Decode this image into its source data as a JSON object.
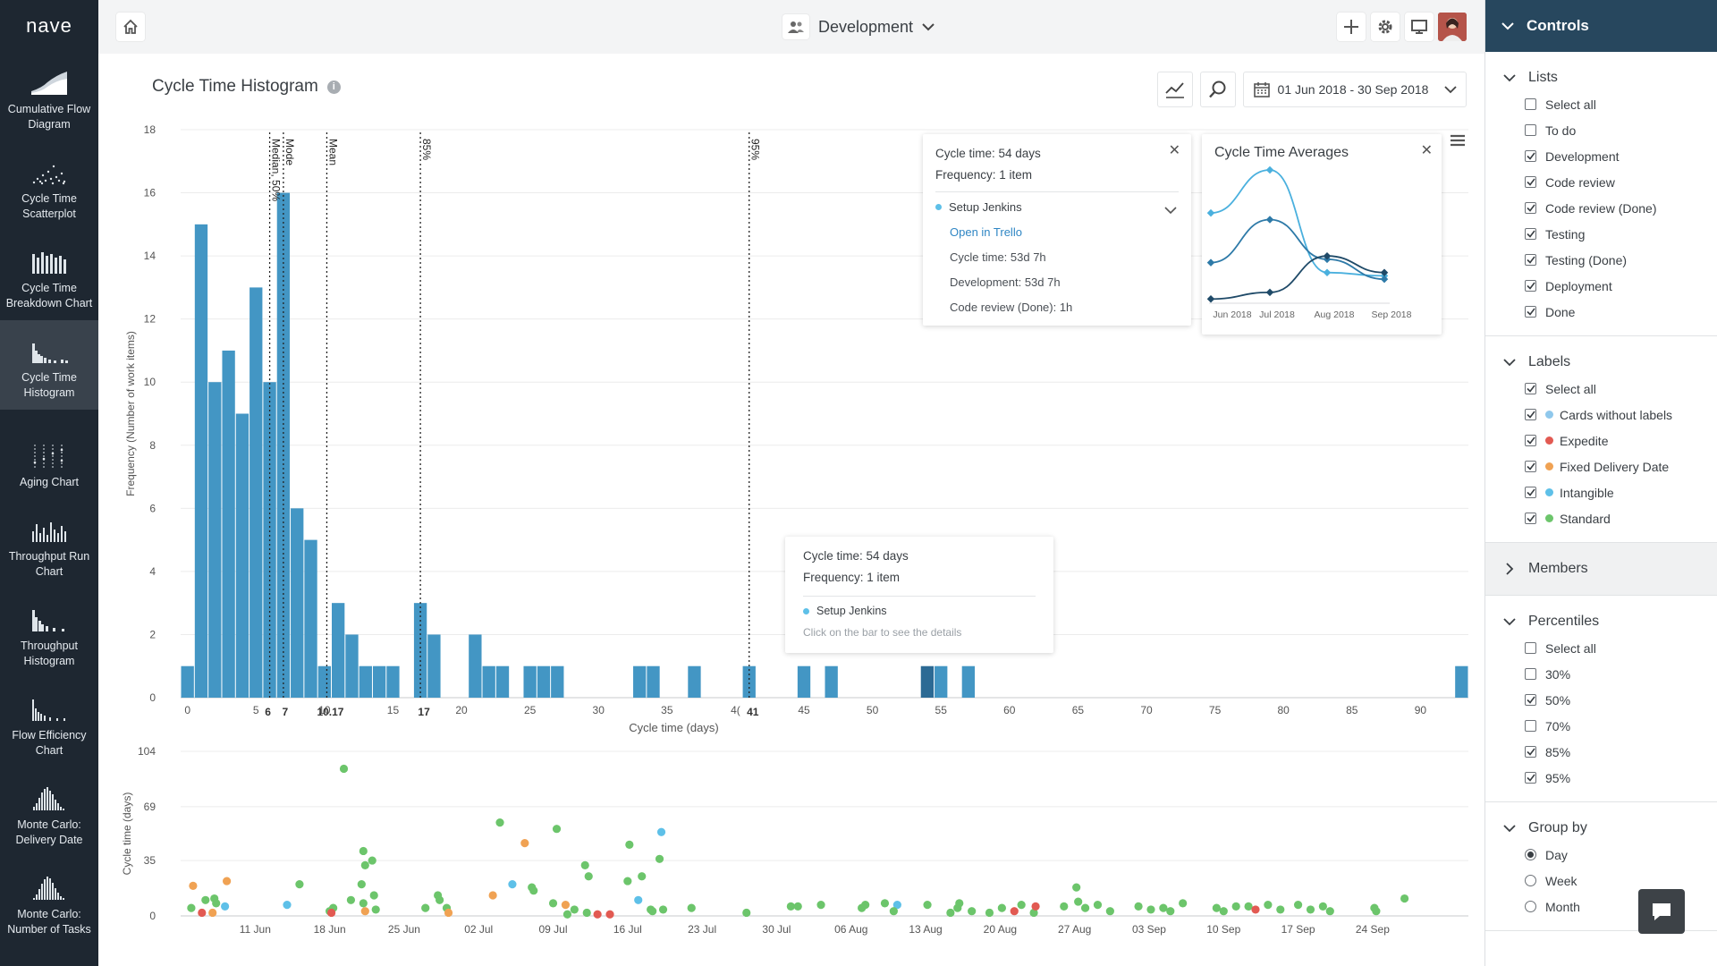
{
  "app": {
    "logo": "nave"
  },
  "nav": {
    "items": [
      {
        "label": "Cumulative Flow Diagram",
        "icon": "cfd-icon"
      },
      {
        "label": "Cycle Time Scatterplot",
        "icon": "scatterplot-icon"
      },
      {
        "label": "Cycle Time Breakdown Chart",
        "icon": "breakdown-icon"
      },
      {
        "label": "Cycle Time Histogram",
        "icon": "histogram-icon",
        "active": true
      },
      {
        "label": "Aging Chart",
        "icon": "aging-icon"
      },
      {
        "label": "Throughput Run Chart",
        "icon": "throughput-run-icon"
      },
      {
        "label": "Throughput Histogram",
        "icon": "throughput-histogram-icon"
      },
      {
        "label": "Flow Efficiency Chart",
        "icon": "flow-efficiency-icon"
      },
      {
        "label": "Monte Carlo: Delivery Date",
        "icon": "monte-carlo-date-icon"
      },
      {
        "label": "Monte Carlo: Number of Tasks",
        "icon": "monte-carlo-tasks-icon"
      }
    ]
  },
  "topbar": {
    "board": "Development"
  },
  "main": {
    "title": "Cycle Time Histogram",
    "info_glyph": "i",
    "date_range": "01 Jun 2018 - 30 Sep 2018"
  },
  "colors": {
    "bar": "#4396c4",
    "bar_selected": "#2c6a94",
    "accent": "#27475e",
    "standard": "#6cc56b",
    "expedite": "#e25a52",
    "fixed": "#f0a253",
    "intangible": "#5ec0e8"
  },
  "details_popup": {
    "cycle_time": "Cycle time: 54 days",
    "frequency": "Frequency: 1 item",
    "card": "Setup Jenkins",
    "link": "Open in Trello",
    "lines": [
      "Cycle time: 53d 7h",
      "Development: 53d 7h",
      "Code review (Done): 1h"
    ]
  },
  "averages_popup": {
    "title": "Cycle Time Averages",
    "x_labels": [
      "Jun 2018",
      "Jul 2018",
      "Aug 2018",
      "Sep 2018"
    ],
    "series": [
      {
        "values": [
          15,
          16.3,
          13.2,
          13.1
        ]
      },
      {
        "values": [
          13.5,
          14.8,
          13.6,
          13.0
        ]
      },
      {
        "values": [
          12.4,
          12.6,
          13.7,
          13.2
        ]
      }
    ]
  },
  "hover_tip": {
    "cycle_time": "Cycle time: 54 days",
    "frequency": "Frequency: 1 item",
    "card": "Setup Jenkins",
    "hint": "Click on the bar to see the details"
  },
  "chart_data": [
    {
      "type": "bar",
      "title": "Cycle Time Histogram",
      "xlabel": "Cycle time (days)",
      "ylabel": "Frequency (Number of work items)",
      "ylim": [
        0,
        18
      ],
      "xlim": [
        -0.5,
        93.5
      ],
      "y_ticks": [
        0,
        2,
        4,
        6,
        8,
        10,
        12,
        14,
        16,
        18
      ],
      "x_ticks": [
        0,
        5,
        10,
        15,
        20,
        25,
        30,
        35,
        40,
        45,
        50,
        55,
        60,
        65,
        70,
        75,
        80,
        85,
        90
      ],
      "x_tick_last_text": "4(",
      "bars": [
        [
          0,
          1
        ],
        [
          1,
          15
        ],
        [
          2,
          10
        ],
        [
          3,
          11
        ],
        [
          4,
          9
        ],
        [
          5,
          13
        ],
        [
          6,
          10
        ],
        [
          7,
          16
        ],
        [
          8,
          6
        ],
        [
          9,
          5
        ],
        [
          10,
          1
        ],
        [
          11,
          3
        ],
        [
          12,
          2
        ],
        [
          13,
          1
        ],
        [
          14,
          1
        ],
        [
          15,
          1
        ],
        [
          17,
          3
        ],
        [
          18,
          2
        ],
        [
          21,
          2
        ],
        [
          22,
          1
        ],
        [
          23,
          1
        ],
        [
          25,
          1
        ],
        [
          26,
          1
        ],
        [
          27,
          1
        ],
        [
          33,
          1
        ],
        [
          34,
          1
        ],
        [
          37,
          1
        ],
        [
          41,
          1
        ],
        [
          45,
          1
        ],
        [
          47,
          1
        ],
        [
          54,
          1
        ],
        [
          55,
          1
        ],
        [
          57,
          1
        ],
        [
          93,
          1
        ]
      ],
      "selected_bars": [
        54
      ],
      "markers": [
        {
          "x": 6,
          "label": "Median, 50%",
          "tick": "6"
        },
        {
          "x": 7,
          "label": "Mode",
          "tick": "7"
        },
        {
          "x": 10.17,
          "label": "Mean",
          "tick": "10.17"
        },
        {
          "x": 17,
          "label": "85%",
          "tick": "17"
        },
        {
          "x": 41,
          "label": "95%",
          "tick": "41"
        }
      ]
    },
    {
      "type": "scatter",
      "ylabel": "Cycle time (days)",
      "y_ticks": [
        0,
        35,
        69,
        104
      ],
      "ylim": [
        0,
        104
      ],
      "x_ticks": [
        "11 Jun",
        "18 Jun",
        "25 Jun",
        "02 Jul",
        "09 Jul",
        "16 Jul",
        "23 Jul",
        "30 Jul",
        "06 Aug",
        "13 Aug",
        "20 Aug",
        "27 Aug",
        "03 Sep",
        "10 Sep",
        "17 Sep",
        "24 Sep"
      ],
      "x_range_days": [
        0,
        121
      ],
      "points": [
        [
          1,
          5,
          "s"
        ],
        [
          1,
          19,
          "f"
        ],
        [
          2,
          10,
          "s"
        ],
        [
          2,
          2,
          "e"
        ],
        [
          3,
          11,
          "s"
        ],
        [
          3,
          8,
          "s"
        ],
        [
          3,
          2,
          "f"
        ],
        [
          4,
          6,
          "i"
        ],
        [
          4,
          22,
          "f"
        ],
        [
          10,
          7,
          "i"
        ],
        [
          11,
          20,
          "s"
        ],
        [
          14,
          5,
          "s"
        ],
        [
          14,
          3,
          "s"
        ],
        [
          14,
          2,
          "e"
        ],
        [
          15,
          93,
          "s"
        ],
        [
          16,
          10,
          "s"
        ],
        [
          17,
          41,
          "s"
        ],
        [
          17,
          32,
          "s"
        ],
        [
          17,
          20,
          "s"
        ],
        [
          17,
          8,
          "s"
        ],
        [
          17,
          3,
          "f"
        ],
        [
          18,
          35,
          "s"
        ],
        [
          18,
          13,
          "s"
        ],
        [
          18,
          4,
          "s"
        ],
        [
          23,
          5,
          "s"
        ],
        [
          24,
          13,
          "s"
        ],
        [
          24,
          10,
          "s"
        ],
        [
          25,
          5,
          "s"
        ],
        [
          25,
          2,
          "f"
        ],
        [
          29,
          13,
          "f"
        ],
        [
          30,
          59,
          "s"
        ],
        [
          31,
          20,
          "i"
        ],
        [
          32,
          46,
          "f"
        ],
        [
          33,
          18,
          "s"
        ],
        [
          33,
          16,
          "s"
        ],
        [
          35,
          55,
          "s"
        ],
        [
          35,
          8,
          "s"
        ],
        [
          36,
          7,
          "f"
        ],
        [
          36,
          1,
          "s"
        ],
        [
          37,
          4,
          "s"
        ],
        [
          38,
          2,
          "s"
        ],
        [
          38,
          25,
          "s"
        ],
        [
          38,
          32,
          "s"
        ],
        [
          39,
          1,
          "e"
        ],
        [
          40,
          1,
          "e"
        ],
        [
          42,
          22,
          "s"
        ],
        [
          42,
          45,
          "s"
        ],
        [
          43,
          25,
          "s"
        ],
        [
          43,
          10,
          "i"
        ],
        [
          44,
          4,
          "s"
        ],
        [
          44,
          3,
          "s"
        ],
        [
          45,
          36,
          "s"
        ],
        [
          45,
          53,
          "i"
        ],
        [
          45,
          4,
          "s"
        ],
        [
          48,
          5,
          "s"
        ],
        [
          53,
          2,
          "s"
        ],
        [
          57,
          6,
          "s"
        ],
        [
          58,
          6,
          "s"
        ],
        [
          60,
          7,
          "s"
        ],
        [
          64,
          7,
          "s"
        ],
        [
          64,
          5,
          "s"
        ],
        [
          66,
          8,
          "s"
        ],
        [
          67,
          7,
          "i"
        ],
        [
          67,
          3,
          "s"
        ],
        [
          70,
          7,
          "s"
        ],
        [
          72,
          2,
          "s"
        ],
        [
          73,
          5,
          "s"
        ],
        [
          73,
          8,
          "s"
        ],
        [
          74,
          3,
          "s"
        ],
        [
          76,
          2,
          "s"
        ],
        [
          77,
          5,
          "s"
        ],
        [
          78,
          3,
          "e"
        ],
        [
          79,
          7,
          "s"
        ],
        [
          80,
          2,
          "s"
        ],
        [
          80,
          6,
          "e"
        ],
        [
          83,
          6,
          "s"
        ],
        [
          84,
          18,
          "s"
        ],
        [
          84,
          9,
          "s"
        ],
        [
          85,
          5,
          "s"
        ],
        [
          86,
          7,
          "s"
        ],
        [
          87,
          3,
          "s"
        ],
        [
          90,
          6,
          "s"
        ],
        [
          91,
          4,
          "s"
        ],
        [
          92,
          5,
          "s"
        ],
        [
          93,
          3,
          "s"
        ],
        [
          94,
          8,
          "s"
        ],
        [
          97,
          5,
          "s"
        ],
        [
          98,
          3,
          "s"
        ],
        [
          99,
          6,
          "s"
        ],
        [
          100,
          6,
          "s"
        ],
        [
          101,
          4,
          "e"
        ],
        [
          102,
          7,
          "s"
        ],
        [
          103,
          4,
          "s"
        ],
        [
          105,
          7,
          "s"
        ],
        [
          106,
          4,
          "s"
        ],
        [
          107,
          6,
          "s"
        ],
        [
          108,
          3,
          "s"
        ],
        [
          112,
          5,
          "s"
        ],
        [
          112,
          3,
          "s"
        ],
        [
          115,
          11,
          "s"
        ]
      ]
    }
  ],
  "controls": {
    "header": "Controls",
    "sections": [
      {
        "title": "Lists",
        "expanded": true,
        "items": [
          {
            "label": "Select all",
            "checked": false
          },
          {
            "label": "To do",
            "checked": false
          },
          {
            "label": "Development",
            "checked": true
          },
          {
            "label": "Code review",
            "checked": true
          },
          {
            "label": "Code review (Done)",
            "checked": true
          },
          {
            "label": "Testing",
            "checked": true
          },
          {
            "label": "Testing (Done)",
            "checked": true
          },
          {
            "label": "Deployment",
            "checked": true
          },
          {
            "label": "Done",
            "checked": true
          }
        ]
      },
      {
        "title": "Labels",
        "expanded": true,
        "items": [
          {
            "label": "Select all",
            "checked": true
          },
          {
            "label": "Cards without labels",
            "checked": true,
            "dot": "#8fc8ec"
          },
          {
            "label": "Expedite",
            "checked": true,
            "dot": "#e25a52"
          },
          {
            "label": "Fixed Delivery Date",
            "checked": true,
            "dot": "#f0a253"
          },
          {
            "label": "Intangible",
            "checked": true,
            "dot": "#5ec0e8"
          },
          {
            "label": "Standard",
            "checked": true,
            "dot": "#6cc56b"
          }
        ]
      },
      {
        "title": "Members",
        "expanded": false,
        "items": []
      },
      {
        "title": "Percentiles",
        "expanded": true,
        "items": [
          {
            "label": "Select all",
            "checked": false
          },
          {
            "label": "30%",
            "checked": false
          },
          {
            "label": "50%",
            "checked": true
          },
          {
            "label": "70%",
            "checked": false
          },
          {
            "label": "85%",
            "checked": true
          },
          {
            "label": "95%",
            "checked": true
          }
        ]
      },
      {
        "title": "Group by",
        "expanded": true,
        "radio": true,
        "items": [
          {
            "label": "Day",
            "checked": true
          },
          {
            "label": "Week",
            "checked": false
          },
          {
            "label": "Month",
            "checked": false
          }
        ]
      }
    ]
  }
}
